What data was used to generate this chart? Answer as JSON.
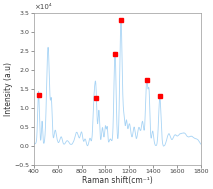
{
  "title": "",
  "xlabel": "Raman shift(cm⁻¹)",
  "ylabel": "Intensity (a.u)",
  "xlim": [
    400,
    1800
  ],
  "ylim": [
    -0.5,
    3.5
  ],
  "yticks": [
    -0.5,
    0,
    0.5,
    1.0,
    1.5,
    2.0,
    2.5,
    3.0,
    3.5
  ],
  "xticks": [
    400,
    600,
    800,
    1000,
    1200,
    1400,
    1600,
    1800
  ],
  "y_scale_label": "×10⁴",
  "line_color": "#a8d4f5",
  "marker_color": "red",
  "marker_size": 3.5,
  "red_dot_positions": [
    [
      440,
      1.35
    ],
    [
      920,
      1.28
    ],
    [
      1080,
      2.42
    ],
    [
      1130,
      3.33
    ],
    [
      1345,
      1.73
    ],
    [
      1455,
      1.31
    ]
  ],
  "background_color": "white"
}
